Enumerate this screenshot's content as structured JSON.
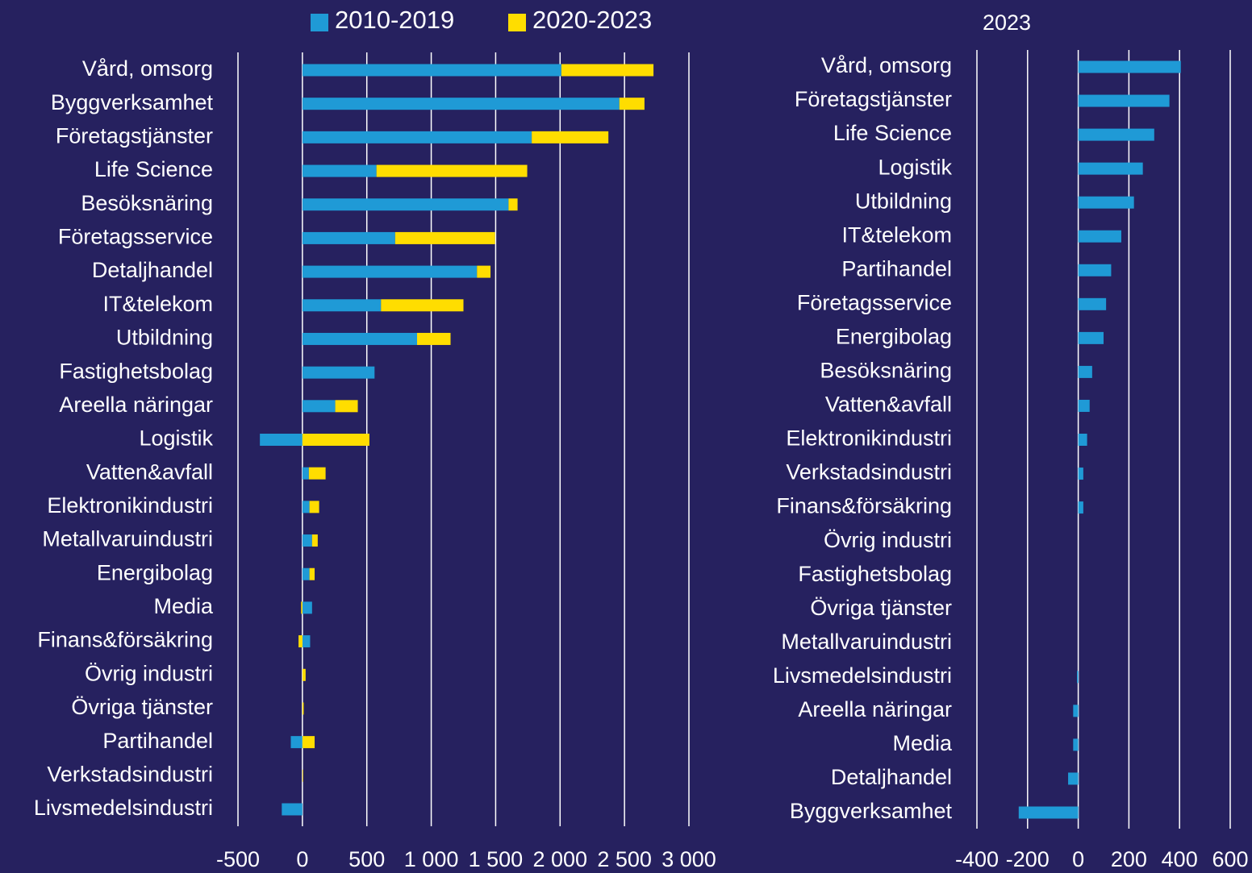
{
  "chart_data": [
    {
      "type": "bar",
      "orientation": "horizontal",
      "stacked": true,
      "categories": [
        "Vård, omsorg",
        "Byggverksamhet",
        "Företagstjänster",
        "Life Science",
        "Besöksnäring",
        "Företagsservice",
        "Detaljhandel",
        "IT&telekom",
        "Utbildning",
        "Fastighetsbolag",
        "Areella näringar",
        "Logistik",
        "Vatten&avfall",
        "Elektronikindustri",
        "Metallvaruindustri",
        "Energibolag",
        "Media",
        "Finans&försäkring",
        "Övrig industri",
        "Övriga tjänster",
        "Partihandel",
        "Verkstadsindustri",
        "Livsmedelsindustri"
      ],
      "series": [
        {
          "name": "2010-2019",
          "color": "#1f9ad6",
          "values": [
            2010,
            2460,
            1780,
            575,
            1600,
            720,
            1355,
            610,
            890,
            560,
            255,
            -330,
            50,
            55,
            75,
            55,
            75,
            60,
            0,
            0,
            -90,
            0,
            -160
          ]
        },
        {
          "name": "2020-2023",
          "color": "#ffdd00",
          "values": [
            715,
            195,
            595,
            1170,
            70,
            775,
            105,
            640,
            260,
            0,
            175,
            520,
            130,
            75,
            44,
            40,
            -10,
            -30,
            25,
            10,
            95,
            5,
            0
          ]
        }
      ],
      "xlim": [
        -500,
        3000
      ],
      "xticks": [
        -500,
        0,
        500,
        {
          "value": 1000,
          "label": "1 000"
        },
        {
          "value": 1500,
          "label": "1 500"
        },
        {
          "value": 2000,
          "label": "2 000"
        },
        {
          "value": 2500,
          "label": "2 500"
        },
        {
          "value": 3000,
          "label": "3 000"
        }
      ],
      "grid": true,
      "legend": "top"
    },
    {
      "type": "bar",
      "orientation": "horizontal",
      "title": "2023",
      "categories": [
        "Vård, omsorg",
        "Företagstjänster",
        "Life Science",
        "Logistik",
        "Utbildning",
        "IT&telekom",
        "Partihandel",
        "Företagsservice",
        "Energibolag",
        "Besöksnäring",
        "Vatten&avfall",
        "Elektronikindustri",
        "Verkstadsindustri",
        "Finans&försäkring",
        "Övrig industri",
        "Fastighetsbolag",
        "Övriga tjänster",
        "Metallvaruindustri",
        "Livsmedelsindustri",
        "Areella näringar",
        "Media",
        "Detaljhandel",
        "Byggverksamhet"
      ],
      "values": [
        405,
        360,
        300,
        255,
        220,
        170,
        130,
        110,
        100,
        55,
        45,
        35,
        20,
        20,
        0,
        0,
        0,
        0,
        -5,
        -20,
        -20,
        -40,
        -235
      ],
      "color": "#1f9ad6",
      "xlim": [
        -400,
        600
      ],
      "xticks": [
        -400,
        -200,
        0,
        200,
        400,
        600
      ],
      "grid": true
    }
  ]
}
